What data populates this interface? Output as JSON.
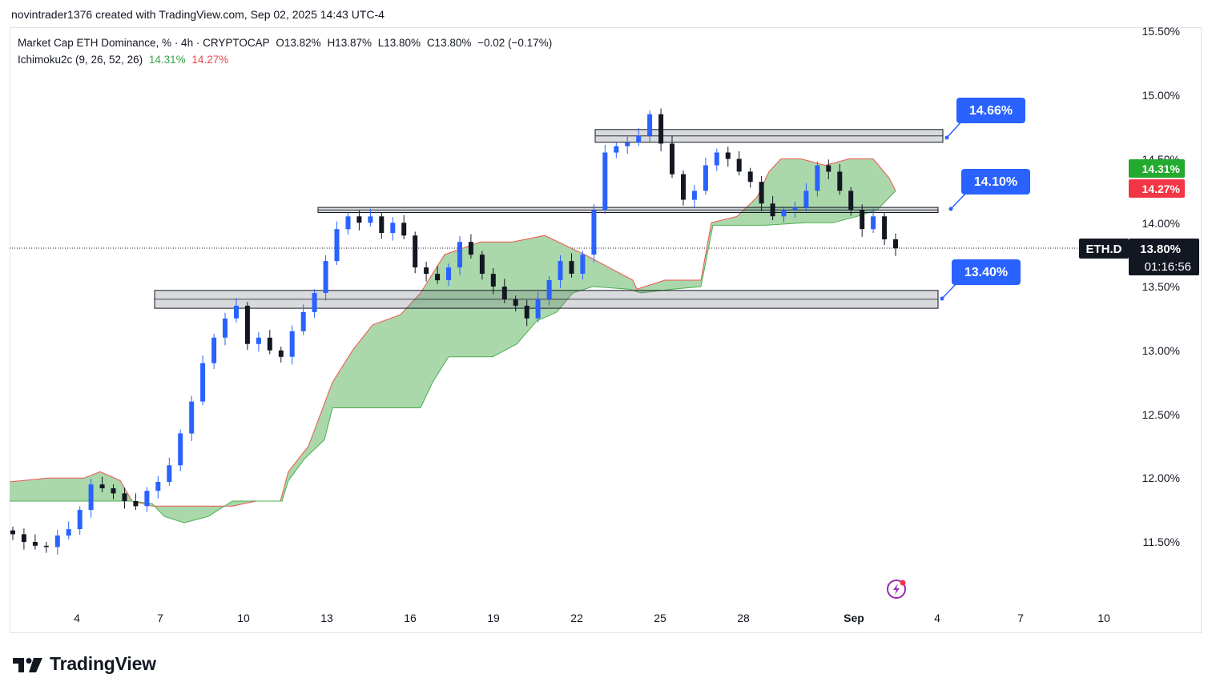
{
  "header": {
    "text": "novintrader1376 created with TradingView.com, Sep 02, 2025 14:43 UTC-4"
  },
  "legend": {
    "line1": {
      "symbol": "Market Cap ETH Dominance, % · 4h · CRYPTOCAP",
      "open": "O13.82%",
      "high": "H13.87%",
      "low": "L13.80%",
      "close": "C13.80%",
      "change": "−0.02 (−0.17%)"
    },
    "line2": {
      "indicator": "Ichimoku2c (9, 26, 52, 26)",
      "value_green": "14.31%",
      "value_red": "14.27%"
    }
  },
  "price_axis": {
    "ticks": [
      "15.50%",
      "15.00%",
      "14.50%",
      "14.00%",
      "13.50%",
      "13.00%",
      "12.50%",
      "12.00%",
      "11.50%"
    ],
    "badges": [
      {
        "label": "14.31%",
        "color": "#22ab2e"
      },
      {
        "label": "14.27%",
        "color": "#f23645"
      }
    ],
    "last_price": {
      "symbol": "ETH.D",
      "value": "13.80%",
      "countdown": "01:16:56"
    }
  },
  "time_axis": {
    "ticks": [
      "4",
      "7",
      "10",
      "13",
      "16",
      "19",
      "22",
      "25",
      "28",
      "Sep",
      "4",
      "7",
      "10"
    ]
  },
  "callouts": [
    {
      "label": "14.66%"
    },
    {
      "label": "14.10%"
    },
    {
      "label": "13.40%"
    }
  ],
  "colors": {
    "up": "#2962ff",
    "down": "#131722",
    "cloud": "#a5d6a7",
    "cloud_edge_green": "#4caf50",
    "cloud_edge_red": "#ef5350",
    "callout": "#2962ff"
  },
  "icons": {
    "logo": "tradingview-logo-icon",
    "flash": "flash-icon"
  },
  "brand": {
    "name": "TradingView"
  },
  "chart_data": {
    "type": "candlestick",
    "title": "Market Cap ETH Dominance, % · 4h · CRYPTOCAP",
    "interval": "4h",
    "ylim": [
      11.2,
      15.6
    ],
    "x_ticks": [
      "4",
      "7",
      "10",
      "13",
      "16",
      "19",
      "22",
      "25",
      "28",
      "Sep",
      "4",
      "7",
      "10"
    ],
    "last_close": 13.8,
    "ohlc_last": {
      "open": 13.82,
      "high": 13.87,
      "low": 13.8,
      "close": 13.8
    },
    "ichimoku": {
      "params": [
        9,
        26,
        52,
        26
      ],
      "span_a_last": 14.31,
      "span_b_last": 14.27
    },
    "levels": [
      14.66,
      14.1,
      13.4
    ],
    "close_path": [
      11.56,
      11.5,
      11.47,
      11.46,
      11.55,
      11.6,
      11.75,
      11.95,
      11.92,
      11.88,
      11.82,
      11.78,
      11.9,
      11.97,
      12.1,
      12.35,
      12.6,
      12.9,
      13.1,
      13.25,
      13.35,
      13.05,
      13.1,
      13.0,
      12.95,
      13.15,
      13.3,
      13.45,
      13.7,
      13.95,
      14.05,
      14.0,
      14.05,
      13.92,
      14.0,
      13.9,
      13.65,
      13.6,
      13.55,
      13.65,
      13.85,
      13.75,
      13.6,
      13.5,
      13.4,
      13.35,
      13.25,
      13.4,
      13.55,
      13.7,
      13.6,
      13.75,
      14.1,
      14.55,
      14.6,
      14.63,
      14.68,
      14.85,
      14.62,
      14.38,
      14.18,
      14.25,
      14.45,
      14.55,
      14.5,
      14.4,
      14.32,
      14.15,
      14.05,
      14.1,
      14.12,
      14.25,
      14.45,
      14.4,
      14.25,
      14.1,
      13.95,
      14.05,
      13.87,
      13.8
    ]
  }
}
